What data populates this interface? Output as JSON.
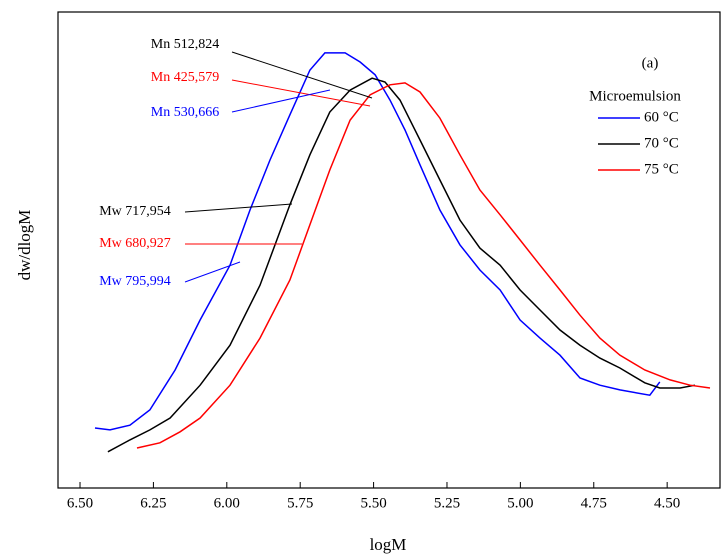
{
  "chart_data": {
    "type": "line",
    "xlabel": "logM",
    "ylabel": "dw/dlogM",
    "panel_label": "(a)",
    "legend_title": "Microemulsion",
    "xlim": [
      6.575,
      4.32
    ],
    "ylim": [
      0,
      100
    ],
    "xticks": [
      {
        "value": 6.5,
        "label": "6.50"
      },
      {
        "value": 6.25,
        "label": "6.25"
      },
      {
        "value": 6.0,
        "label": "6.00"
      },
      {
        "value": 5.75,
        "label": "5.75"
      },
      {
        "value": 5.5,
        "label": "5.50"
      },
      {
        "value": 5.25,
        "label": "5.25"
      },
      {
        "value": 5.0,
        "label": "5.00"
      },
      {
        "value": 4.75,
        "label": "4.75"
      },
      {
        "value": 4.5,
        "label": "4.50"
      }
    ],
    "series": [
      {
        "name": "60 °C",
        "color": "#0000ff",
        "x": [
          6.449,
          6.398,
          6.33,
          6.262,
          6.176,
          6.091,
          5.989,
          5.921,
          5.853,
          5.785,
          5.717,
          5.666,
          5.597,
          5.546,
          5.495,
          5.444,
          5.393,
          5.342,
          5.274,
          5.206,
          5.138,
          5.069,
          5.001,
          4.933,
          4.865,
          4.797,
          4.729,
          4.661,
          4.559,
          4.525
        ],
        "values": [
          12.6,
          12.2,
          13.2,
          16.4,
          24.8,
          35.3,
          46.8,
          58.4,
          68.9,
          78.4,
          87.8,
          91.4,
          91.4,
          89.5,
          86.8,
          81.5,
          75.2,
          67.9,
          58.4,
          51.1,
          45.8,
          41.6,
          35.3,
          31.5,
          27.9,
          23.1,
          21.6,
          20.6,
          19.5,
          22.3
        ]
      },
      {
        "name": "70 °C",
        "color": "#000000",
        "x": [
          6.405,
          6.33,
          6.262,
          6.193,
          6.091,
          5.989,
          5.887,
          5.785,
          5.717,
          5.649,
          5.58,
          5.505,
          5.461,
          5.41,
          5.342,
          5.274,
          5.206,
          5.138,
          5.069,
          5.001,
          4.933,
          4.865,
          4.797,
          4.729,
          4.661,
          4.576,
          4.525,
          4.456,
          4.405
        ],
        "values": [
          7.6,
          10.1,
          12.2,
          14.7,
          21.6,
          30.0,
          42.6,
          59.5,
          70.0,
          79.0,
          83.6,
          86.1,
          85.3,
          81.5,
          73.1,
          64.7,
          56.3,
          50.4,
          46.8,
          41.6,
          37.4,
          33.2,
          30.0,
          27.3,
          25.2,
          22.1,
          21.0,
          21.0,
          21.6
        ]
      },
      {
        "name": "75 °C",
        "color": "#ff0000",
        "x": [
          6.306,
          6.228,
          6.159,
          6.091,
          5.989,
          5.887,
          5.785,
          5.717,
          5.649,
          5.58,
          5.512,
          5.444,
          5.393,
          5.342,
          5.274,
          5.206,
          5.138,
          5.069,
          5.001,
          4.933,
          4.865,
          4.797,
          4.729,
          4.661,
          4.576,
          4.49,
          4.422,
          4.354
        ],
        "values": [
          8.4,
          9.5,
          11.8,
          14.7,
          21.6,
          31.5,
          43.7,
          55.3,
          66.8,
          77.3,
          82.6,
          84.7,
          85.1,
          83.2,
          77.7,
          70.0,
          62.6,
          57.4,
          52.1,
          46.8,
          41.6,
          36.3,
          31.5,
          27.9,
          24.8,
          22.7,
          21.6,
          21.0
        ]
      }
    ],
    "annotations": [
      {
        "text": "Mn 512,824",
        "color": "#000000"
      },
      {
        "text": "Mn 425,579",
        "color": "#ff0000"
      },
      {
        "text": "Mn 530,666",
        "color": "#0000ff"
      },
      {
        "text": "Mw 717,954",
        "color": "#000000"
      },
      {
        "text": "Mw 680,927",
        "color": "#ff0000"
      },
      {
        "text": "Mw 795,994",
        "color": "#0000ff"
      }
    ]
  }
}
